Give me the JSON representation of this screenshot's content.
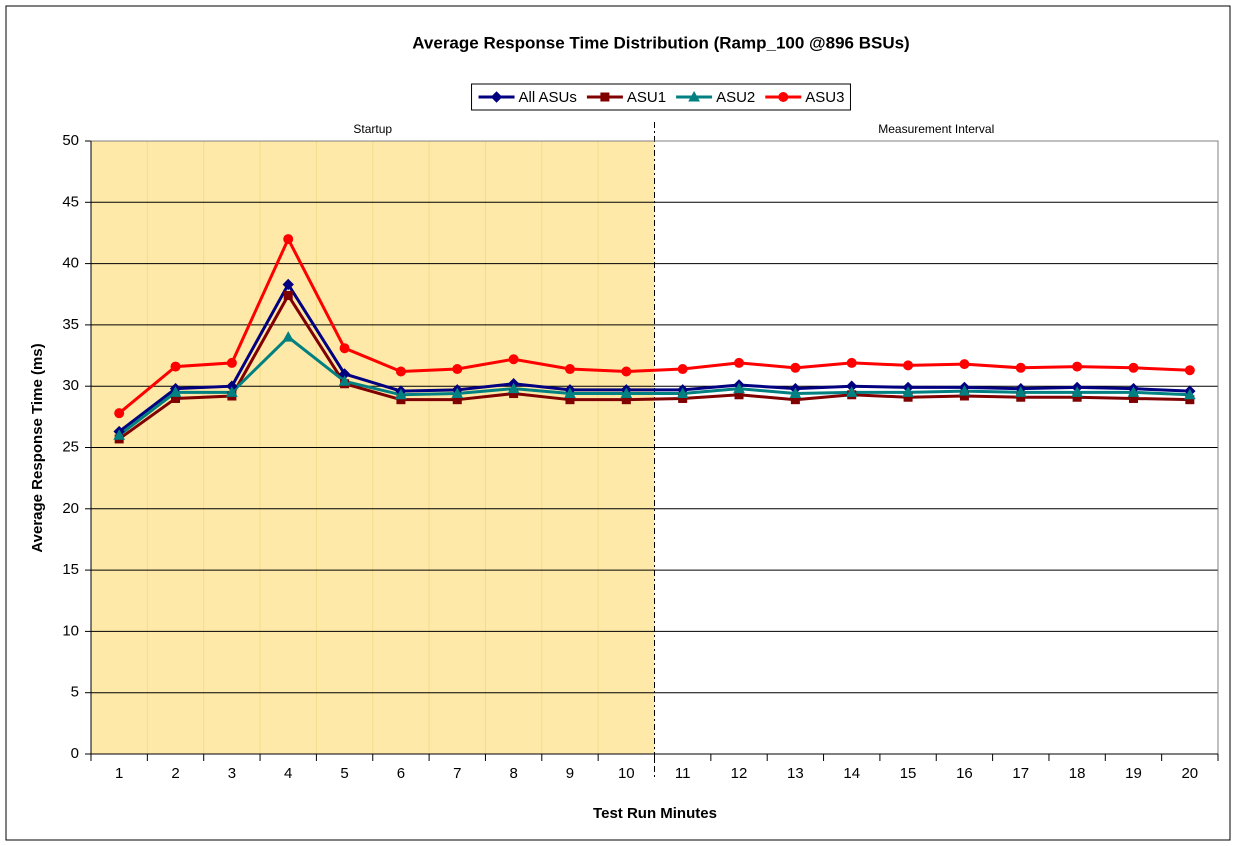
{
  "chart_data": {
    "type": "line",
    "title": "Average Response Time Distribution (Ramp_100 @896 BSUs)",
    "x_label": "Test Run Minutes",
    "y_label": "Average Response Time (ms)",
    "categories": [
      1,
      2,
      3,
      4,
      5,
      6,
      7,
      8,
      9,
      10,
      11,
      12,
      13,
      14,
      15,
      16,
      17,
      18,
      19,
      20
    ],
    "series": [
      {
        "name": "All ASUs",
        "color": "#000080",
        "marker": "diamond",
        "values": [
          26.3,
          29.8,
          30.0,
          38.3,
          31.0,
          29.6,
          29.7,
          30.2,
          29.7,
          29.7,
          29.7,
          30.1,
          29.8,
          30.0,
          29.9,
          29.9,
          29.8,
          29.9,
          29.8,
          29.6
        ]
      },
      {
        "name": "ASU1",
        "color": "#800000",
        "marker": "square",
        "values": [
          25.7,
          29.0,
          29.2,
          37.4,
          30.2,
          28.9,
          28.9,
          29.4,
          28.9,
          28.9,
          29.0,
          29.3,
          28.9,
          29.3,
          29.1,
          29.2,
          29.1,
          29.1,
          29.0,
          28.9
        ]
      },
      {
        "name": "ASU2",
        "color": "#008080",
        "marker": "triangle",
        "values": [
          26.0,
          29.5,
          29.5,
          34.0,
          30.4,
          29.3,
          29.4,
          29.8,
          29.4,
          29.4,
          29.4,
          29.8,
          29.4,
          29.5,
          29.5,
          29.6,
          29.5,
          29.5,
          29.5,
          29.3
        ]
      },
      {
        "name": "ASU3",
        "color": "#ff0000",
        "marker": "circle",
        "values": [
          27.8,
          31.6,
          31.9,
          42.0,
          33.1,
          31.2,
          31.4,
          32.2,
          31.4,
          31.2,
          31.4,
          31.9,
          31.5,
          31.9,
          31.7,
          31.8,
          31.5,
          31.6,
          31.5,
          31.3
        ]
      }
    ],
    "regions": [
      {
        "label": "Startup",
        "from": 1,
        "to": 10,
        "color": "#ffe9a8"
      },
      {
        "label": "Measurement Interval",
        "from": 11,
        "to": 20
      }
    ],
    "ylim": [
      0,
      50
    ],
    "yticks": [
      0,
      5,
      10,
      15,
      20,
      25,
      30,
      35,
      40,
      45,
      50
    ],
    "grid": true,
    "legend": "top"
  }
}
